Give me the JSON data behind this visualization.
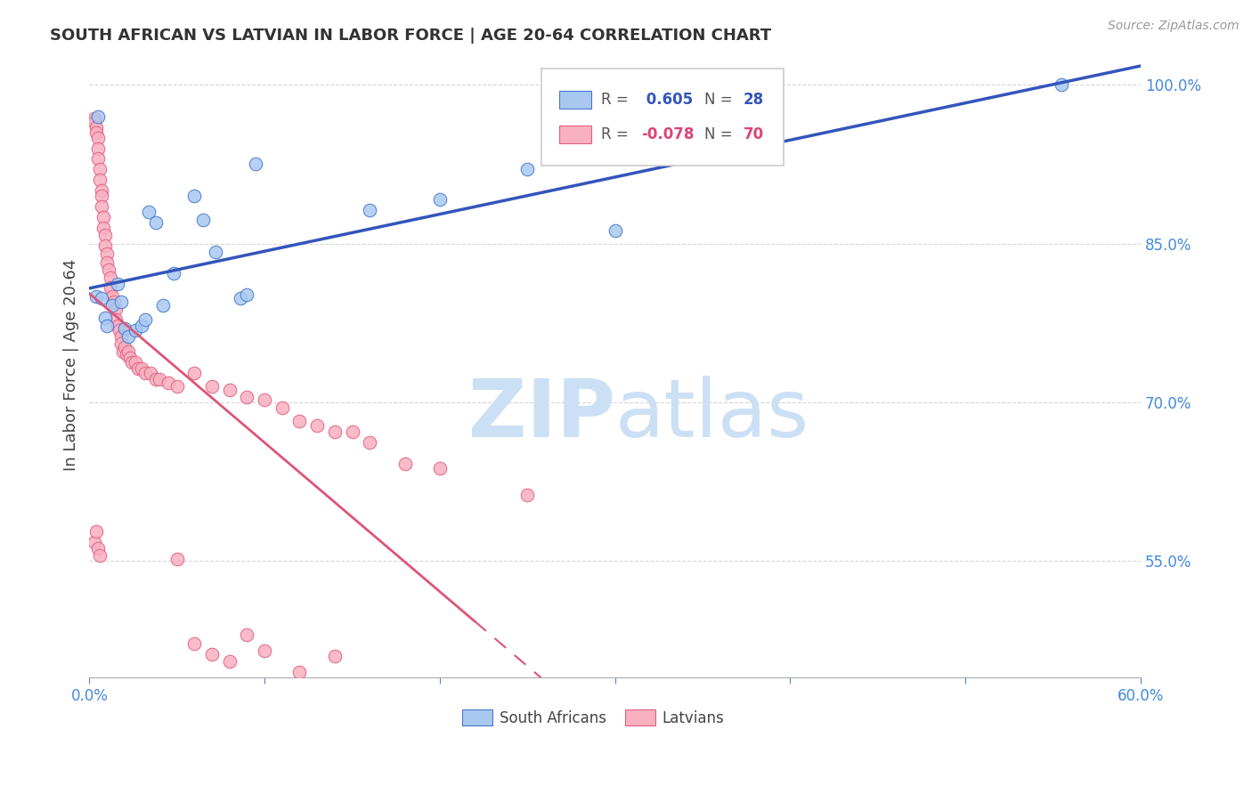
{
  "title": "SOUTH AFRICAN VS LATVIAN IN LABOR FORCE | AGE 20-64 CORRELATION CHART",
  "source": "Source: ZipAtlas.com",
  "ylabel": "In Labor Force | Age 20-64",
  "xlim": [
    0.0,
    0.6
  ],
  "ylim": [
    0.44,
    1.03
  ],
  "xtick_positions": [
    0.0,
    0.1,
    0.2,
    0.3,
    0.4,
    0.5,
    0.6
  ],
  "xticklabels": [
    "0.0%",
    "",
    "",
    "",
    "",
    "",
    "60.0%"
  ],
  "ytick_positions": [
    0.55,
    0.7,
    0.85,
    1.0
  ],
  "ytick_labels": [
    "55.0%",
    "70.0%",
    "85.0%",
    "100.0%"
  ],
  "grid_color": "#cccccc",
  "background_color": "#ffffff",
  "blue_fill": "#a8c8f0",
  "blue_edge": "#4477cc",
  "pink_fill": "#f8b0c0",
  "pink_edge": "#e06080",
  "blue_line_color": "#3355bb",
  "pink_line_color": "#dd5577",
  "axis_tick_color": "#4488dd",
  "watermark_color": "#cce0f5",
  "legend_r1": "R = ",
  "legend_v1": "0.605",
  "legend_n1_label": "N = ",
  "legend_n1_val": "28",
  "legend_r2": "R = ",
  "legend_v2": "-0.078",
  "legend_n2_label": "N = ",
  "legend_n2_val": "70",
  "blue_x": [
    0.004,
    0.005,
    0.007,
    0.009,
    0.01,
    0.013,
    0.016,
    0.018,
    0.02,
    0.022,
    0.026,
    0.03,
    0.032,
    0.034,
    0.038,
    0.042,
    0.048,
    0.06,
    0.065,
    0.072,
    0.086,
    0.09,
    0.095,
    0.16,
    0.2,
    0.25,
    0.3,
    0.555
  ],
  "blue_y": [
    0.8,
    0.97,
    0.798,
    0.78,
    0.772,
    0.792,
    0.812,
    0.795,
    0.77,
    0.762,
    0.768,
    0.772,
    0.778,
    0.88,
    0.87,
    0.792,
    0.822,
    0.895,
    0.872,
    0.842,
    0.798,
    0.802,
    0.925,
    0.882,
    0.892,
    0.92,
    0.862,
    1.0
  ],
  "pink_x": [
    0.003,
    0.003,
    0.004,
    0.004,
    0.005,
    0.005,
    0.005,
    0.006,
    0.006,
    0.007,
    0.007,
    0.007,
    0.008,
    0.008,
    0.009,
    0.009,
    0.01,
    0.01,
    0.011,
    0.012,
    0.012,
    0.013,
    0.014,
    0.015,
    0.015,
    0.016,
    0.017,
    0.018,
    0.018,
    0.019,
    0.02,
    0.021,
    0.022,
    0.023,
    0.024,
    0.026,
    0.028,
    0.03,
    0.032,
    0.035,
    0.038,
    0.04,
    0.045,
    0.05,
    0.06,
    0.07,
    0.08,
    0.09,
    0.1,
    0.11,
    0.12,
    0.13,
    0.14,
    0.15,
    0.16,
    0.18,
    0.2,
    0.25,
    0.09,
    0.1,
    0.12,
    0.14,
    0.05,
    0.06,
    0.07,
    0.08,
    0.003,
    0.004,
    0.005,
    0.006
  ],
  "pink_y": [
    0.968,
    0.965,
    0.96,
    0.955,
    0.95,
    0.94,
    0.93,
    0.92,
    0.91,
    0.9,
    0.895,
    0.885,
    0.875,
    0.865,
    0.858,
    0.848,
    0.84,
    0.832,
    0.825,
    0.818,
    0.808,
    0.8,
    0.795,
    0.788,
    0.778,
    0.772,
    0.768,
    0.762,
    0.755,
    0.748,
    0.752,
    0.745,
    0.748,
    0.742,
    0.738,
    0.738,
    0.732,
    0.732,
    0.728,
    0.728,
    0.722,
    0.722,
    0.718,
    0.715,
    0.728,
    0.715,
    0.712,
    0.705,
    0.702,
    0.695,
    0.682,
    0.678,
    0.672,
    0.672,
    0.662,
    0.642,
    0.638,
    0.612,
    0.48,
    0.465,
    0.445,
    0.46,
    0.552,
    0.472,
    0.462,
    0.455,
    0.568,
    0.578,
    0.562,
    0.555
  ]
}
